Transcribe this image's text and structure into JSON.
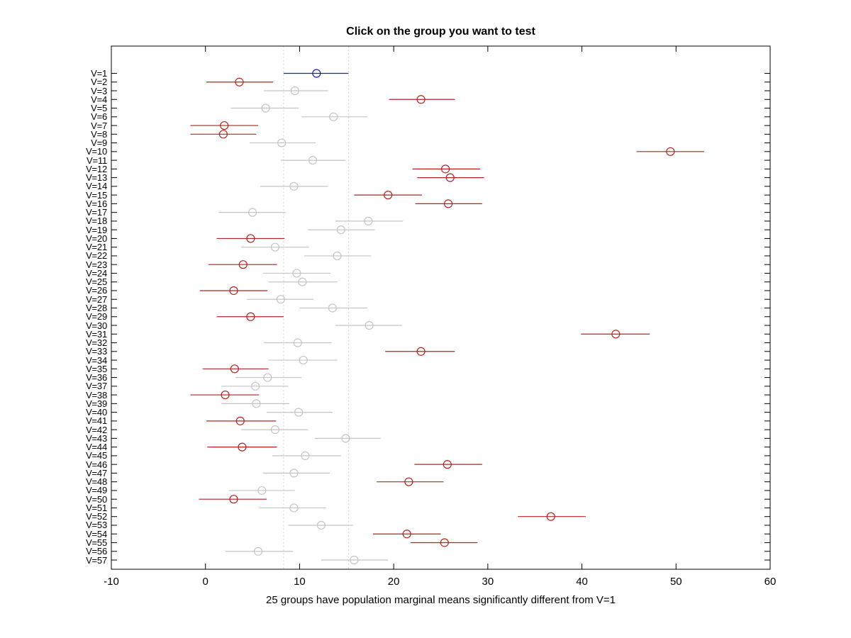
{
  "title": "Click on the group you want to test",
  "xlabel": "25 groups have population marginal means significantly different from V=1",
  "colors": {
    "background": "#ffffff",
    "axis": "#000000",
    "reference": "#2121b0",
    "significant": "#b42222",
    "nonsignificant": "#c4c4c4",
    "comparison_line": "#d6d6d6"
  },
  "chart_data": {
    "type": "scatter",
    "subtype": "multcompare-errorbar-dotplot",
    "title": "Click on the group you want to test",
    "xlabel": "25 groups have population marginal means significantly different from V=1",
    "ylabel": "",
    "xlim": [
      -10,
      60
    ],
    "xticks": [
      -10,
      0,
      10,
      20,
      30,
      40,
      50,
      60
    ],
    "grid": false,
    "comparison_interval": [
      8.3,
      15.2
    ],
    "legend": {
      "reference_color_meaning": "selected group V=1",
      "significant_color_meaning": "significantly different from V=1",
      "nonsignificant_color_meaning": "not significantly different from V=1"
    },
    "groups": [
      {
        "label": "V=1",
        "center": 11.8,
        "lo": 8.3,
        "hi": 15.2,
        "status": "reference"
      },
      {
        "label": "V=2",
        "center": 3.6,
        "lo": 0.1,
        "hi": 7.2,
        "status": "significant"
      },
      {
        "label": "V=3",
        "center": 9.5,
        "lo": 6.2,
        "hi": 13.0,
        "status": "ns"
      },
      {
        "label": "V=4",
        "center": 22.9,
        "lo": 19.5,
        "hi": 26.5,
        "status": "significant"
      },
      {
        "label": "V=5",
        "center": 6.4,
        "lo": 2.7,
        "hi": 9.9,
        "status": "ns"
      },
      {
        "label": "V=6",
        "center": 13.6,
        "lo": 10.2,
        "hi": 17.2,
        "status": "ns"
      },
      {
        "label": "V=7",
        "center": 2.0,
        "lo": -1.6,
        "hi": 5.6,
        "status": "significant"
      },
      {
        "label": "V=8",
        "center": 1.9,
        "lo": -1.6,
        "hi": 5.4,
        "status": "significant"
      },
      {
        "label": "V=9",
        "center": 8.1,
        "lo": 4.7,
        "hi": 11.7,
        "status": "ns"
      },
      {
        "label": "V=10",
        "center": 49.4,
        "lo": 45.8,
        "hi": 53.0,
        "status": "significant"
      },
      {
        "label": "V=11",
        "center": 11.4,
        "lo": 8.0,
        "hi": 14.9,
        "status": "ns"
      },
      {
        "label": "V=12",
        "center": 25.5,
        "lo": 22.0,
        "hi": 29.2,
        "status": "significant"
      },
      {
        "label": "V=13",
        "center": 26.0,
        "lo": 22.5,
        "hi": 29.6,
        "status": "significant"
      },
      {
        "label": "V=14",
        "center": 9.4,
        "lo": 5.8,
        "hi": 13.0,
        "status": "ns"
      },
      {
        "label": "V=15",
        "center": 19.4,
        "lo": 15.8,
        "hi": 23.0,
        "status": "significant"
      },
      {
        "label": "V=16",
        "center": 25.8,
        "lo": 22.3,
        "hi": 29.4,
        "status": "significant"
      },
      {
        "label": "V=17",
        "center": 5.0,
        "lo": 1.4,
        "hi": 8.5,
        "status": "ns"
      },
      {
        "label": "V=18",
        "center": 17.3,
        "lo": 13.8,
        "hi": 21.0,
        "status": "ns"
      },
      {
        "label": "V=19",
        "center": 14.4,
        "lo": 10.9,
        "hi": 18.0,
        "status": "ns"
      },
      {
        "label": "V=20",
        "center": 4.8,
        "lo": 1.2,
        "hi": 8.4,
        "status": "significant"
      },
      {
        "label": "V=21",
        "center": 7.4,
        "lo": 3.8,
        "hi": 11.0,
        "status": "ns"
      },
      {
        "label": "V=22",
        "center": 14.0,
        "lo": 10.5,
        "hi": 17.6,
        "status": "ns"
      },
      {
        "label": "V=23",
        "center": 4.0,
        "lo": 0.3,
        "hi": 7.6,
        "status": "significant"
      },
      {
        "label": "V=24",
        "center": 9.7,
        "lo": 6.1,
        "hi": 13.3,
        "status": "ns"
      },
      {
        "label": "V=25",
        "center": 10.3,
        "lo": 6.7,
        "hi": 14.0,
        "status": "ns"
      },
      {
        "label": "V=26",
        "center": 3.0,
        "lo": -0.6,
        "hi": 6.6,
        "status": "significant"
      },
      {
        "label": "V=27",
        "center": 8.0,
        "lo": 4.4,
        "hi": 11.5,
        "status": "ns"
      },
      {
        "label": "V=28",
        "center": 13.5,
        "lo": 10.0,
        "hi": 17.2,
        "status": "ns"
      },
      {
        "label": "V=29",
        "center": 4.8,
        "lo": 1.2,
        "hi": 8.3,
        "status": "significant"
      },
      {
        "label": "V=30",
        "center": 17.4,
        "lo": 13.8,
        "hi": 20.9,
        "status": "ns"
      },
      {
        "label": "V=31",
        "center": 43.6,
        "lo": 39.9,
        "hi": 47.2,
        "status": "significant"
      },
      {
        "label": "V=32",
        "center": 9.8,
        "lo": 6.2,
        "hi": 13.4,
        "status": "ns"
      },
      {
        "label": "V=33",
        "center": 22.9,
        "lo": 19.1,
        "hi": 26.5,
        "status": "significant"
      },
      {
        "label": "V=34",
        "center": 10.4,
        "lo": 6.7,
        "hi": 14.0,
        "status": "ns"
      },
      {
        "label": "V=35",
        "center": 3.1,
        "lo": -0.3,
        "hi": 6.7,
        "status": "significant"
      },
      {
        "label": "V=36",
        "center": 6.6,
        "lo": 3.2,
        "hi": 10.2,
        "status": "ns"
      },
      {
        "label": "V=37",
        "center": 5.3,
        "lo": 1.7,
        "hi": 8.8,
        "status": "ns"
      },
      {
        "label": "V=38",
        "center": 2.1,
        "lo": -1.6,
        "hi": 5.7,
        "status": "significant"
      },
      {
        "label": "V=39",
        "center": 5.4,
        "lo": 1.7,
        "hi": 8.9,
        "status": "ns"
      },
      {
        "label": "V=40",
        "center": 9.9,
        "lo": 6.5,
        "hi": 13.5,
        "status": "ns"
      },
      {
        "label": "V=41",
        "center": 3.7,
        "lo": 0.1,
        "hi": 7.5,
        "status": "significant"
      },
      {
        "label": "V=42",
        "center": 7.4,
        "lo": 3.8,
        "hi": 10.9,
        "status": "ns"
      },
      {
        "label": "V=43",
        "center": 14.9,
        "lo": 11.6,
        "hi": 18.6,
        "status": "ns"
      },
      {
        "label": "V=44",
        "center": 3.9,
        "lo": 0.2,
        "hi": 7.6,
        "status": "significant"
      },
      {
        "label": "V=45",
        "center": 10.6,
        "lo": 7.1,
        "hi": 14.4,
        "status": "ns"
      },
      {
        "label": "V=46",
        "center": 25.7,
        "lo": 22.2,
        "hi": 29.4,
        "status": "significant"
      },
      {
        "label": "V=47",
        "center": 9.4,
        "lo": 6.1,
        "hi": 13.2,
        "status": "ns"
      },
      {
        "label": "V=48",
        "center": 21.6,
        "lo": 18.2,
        "hi": 25.3,
        "status": "significant"
      },
      {
        "label": "V=49",
        "center": 6.0,
        "lo": 2.5,
        "hi": 9.5,
        "status": "ns"
      },
      {
        "label": "V=50",
        "center": 3.0,
        "lo": -0.7,
        "hi": 6.5,
        "status": "significant"
      },
      {
        "label": "V=51",
        "center": 9.4,
        "lo": 5.7,
        "hi": 12.8,
        "status": "ns"
      },
      {
        "label": "V=52",
        "center": 36.7,
        "lo": 33.2,
        "hi": 40.4,
        "status": "significant"
      },
      {
        "label": "V=53",
        "center": 12.3,
        "lo": 8.8,
        "hi": 15.7,
        "status": "ns"
      },
      {
        "label": "V=54",
        "center": 21.4,
        "lo": 17.8,
        "hi": 25.0,
        "status": "significant"
      },
      {
        "label": "V=55",
        "center": 25.4,
        "lo": 21.8,
        "hi": 28.9,
        "status": "significant"
      },
      {
        "label": "V=56",
        "center": 5.6,
        "lo": 2.1,
        "hi": 9.3,
        "status": "ns"
      },
      {
        "label": "V=57",
        "center": 15.8,
        "lo": 12.3,
        "hi": 19.4,
        "status": "ns"
      }
    ]
  }
}
